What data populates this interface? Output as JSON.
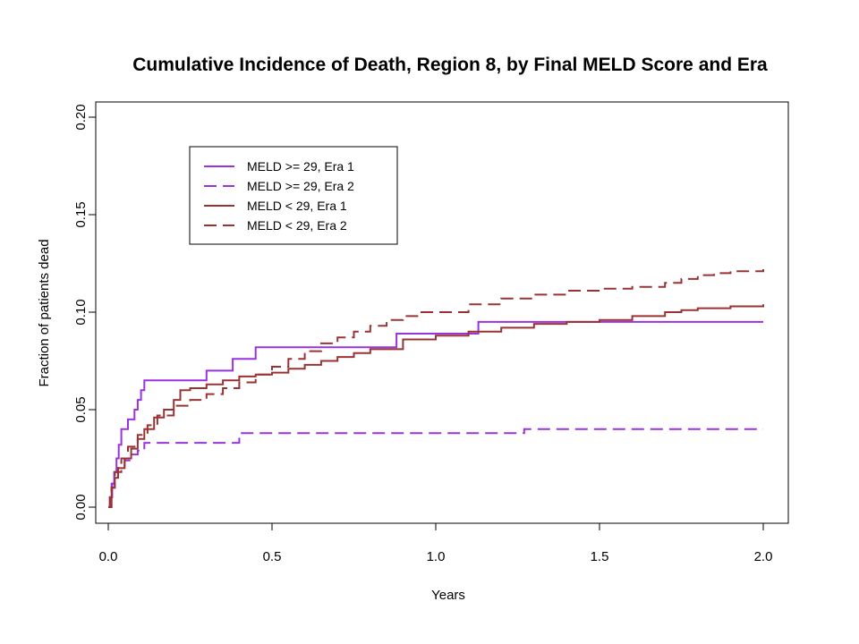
{
  "chart_data": {
    "type": "line",
    "title": "Cumulative Incidence of Death, Region 8, by Final MELD Score and Era",
    "xlabel": "Years",
    "ylabel": "Fraction of patients dead",
    "xlim": [
      0,
      2
    ],
    "ylim": [
      0,
      0.2
    ],
    "x_ticks": [
      "0.0",
      "0.5",
      "1.0",
      "1.5",
      "2.0"
    ],
    "y_ticks": [
      "0.00",
      "0.05",
      "0.10",
      "0.15",
      "0.20"
    ],
    "grid": false,
    "legend_position": "top-left",
    "series": [
      {
        "name": "MELD >= 29, Era 1",
        "color": "#9933dd",
        "dash": "solid",
        "x": [
          0,
          0.005,
          0.012,
          0.018,
          0.025,
          0.032,
          0.04,
          0.06,
          0.08,
          0.09,
          0.1,
          0.11,
          0.3,
          0.38,
          0.45,
          0.88,
          1.13,
          2.0
        ],
        "y": [
          0,
          0.005,
          0.012,
          0.018,
          0.025,
          0.032,
          0.04,
          0.045,
          0.05,
          0.055,
          0.06,
          0.065,
          0.07,
          0.076,
          0.082,
          0.089,
          0.095,
          0.095
        ]
      },
      {
        "name": "MELD >= 29, Era 2",
        "color": "#9933dd",
        "dash": "dashed",
        "x": [
          0,
          0.005,
          0.01,
          0.02,
          0.03,
          0.05,
          0.07,
          0.09,
          0.11,
          0.4,
          1.27,
          2.0
        ],
        "y": [
          0,
          0.006,
          0.012,
          0.018,
          0.021,
          0.024,
          0.027,
          0.029,
          0.033,
          0.038,
          0.04,
          0.04
        ]
      },
      {
        "name": "MELD < 29, Era 1",
        "color": "#993333",
        "dash": "solid",
        "x": [
          0,
          0.005,
          0.01,
          0.02,
          0.03,
          0.05,
          0.07,
          0.09,
          0.11,
          0.14,
          0.17,
          0.2,
          0.22,
          0.25,
          0.3,
          0.35,
          0.4,
          0.45,
          0.5,
          0.55,
          0.6,
          0.65,
          0.7,
          0.75,
          0.8,
          0.9,
          1.0,
          1.1,
          1.2,
          1.3,
          1.4,
          1.5,
          1.6,
          1.7,
          1.75,
          1.8,
          1.9,
          2.0
        ],
        "y": [
          0,
          0.005,
          0.01,
          0.015,
          0.02,
          0.025,
          0.03,
          0.035,
          0.04,
          0.046,
          0.05,
          0.055,
          0.06,
          0.061,
          0.063,
          0.065,
          0.067,
          0.068,
          0.069,
          0.071,
          0.073,
          0.075,
          0.077,
          0.079,
          0.081,
          0.086,
          0.088,
          0.09,
          0.092,
          0.094,
          0.095,
          0.096,
          0.098,
          0.1,
          0.101,
          0.102,
          0.103,
          0.104
        ]
      },
      {
        "name": "MELD < 29, Era 2",
        "color": "#993333",
        "dash": "dashed",
        "x": [
          0,
          0.01,
          0.02,
          0.04,
          0.06,
          0.09,
          0.12,
          0.15,
          0.2,
          0.25,
          0.3,
          0.35,
          0.4,
          0.45,
          0.5,
          0.55,
          0.6,
          0.65,
          0.7,
          0.75,
          0.8,
          0.85,
          0.9,
          0.95,
          1.0,
          1.1,
          1.2,
          1.3,
          1.4,
          1.5,
          1.6,
          1.7,
          1.75,
          1.8,
          1.85,
          1.9,
          2.0
        ],
        "y": [
          0,
          0.01,
          0.018,
          0.025,
          0.031,
          0.037,
          0.042,
          0.047,
          0.052,
          0.055,
          0.058,
          0.061,
          0.064,
          0.068,
          0.072,
          0.076,
          0.08,
          0.084,
          0.087,
          0.09,
          0.093,
          0.096,
          0.098,
          0.1,
          0.1,
          0.104,
          0.107,
          0.109,
          0.111,
          0.112,
          0.113,
          0.115,
          0.117,
          0.119,
          0.12,
          0.121,
          0.122
        ]
      }
    ]
  }
}
